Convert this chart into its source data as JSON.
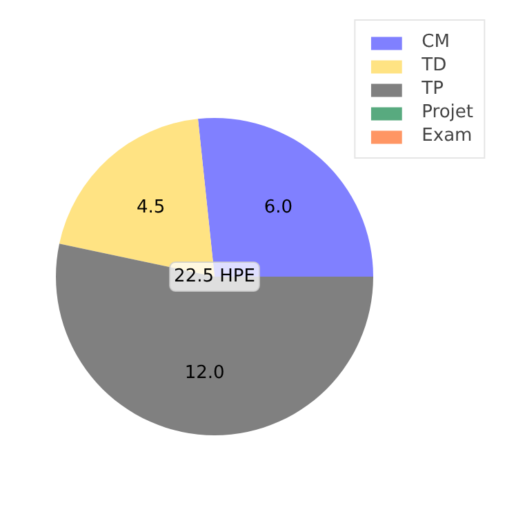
{
  "chart_data": {
    "type": "pie",
    "categories": [
      "CM",
      "TD",
      "TP",
      "Projet",
      "Exam"
    ],
    "values": [
      6.0,
      4.5,
      12.0,
      0,
      0
    ],
    "colors": [
      "#8080ff",
      "#ffe383",
      "#808080",
      "#58aa7f",
      "#ff9664"
    ],
    "value_labels": [
      "6.0",
      "4.5",
      "12.0",
      null,
      null
    ],
    "annotations": [
      "22.5 HPE"
    ],
    "legend": "top right"
  }
}
